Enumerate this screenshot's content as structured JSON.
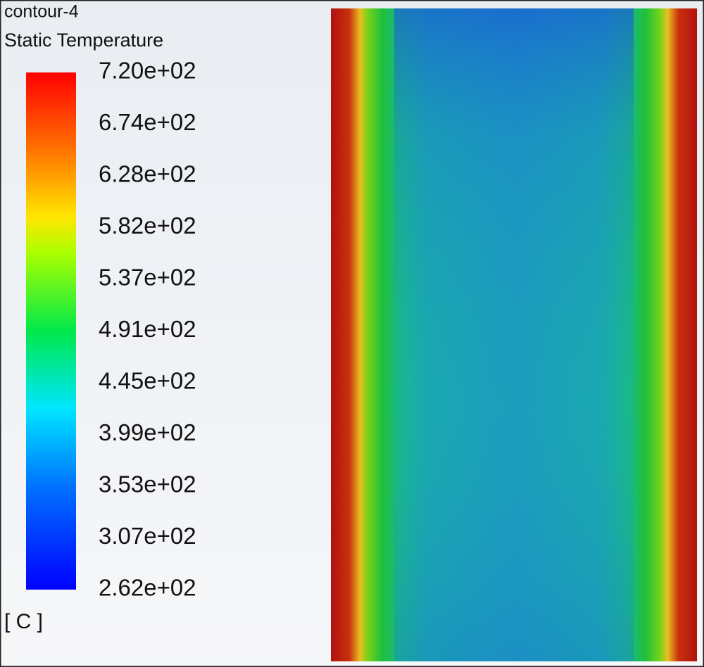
{
  "legend": {
    "title": "contour-4",
    "variable": "Static Temperature",
    "labels": [
      "7.20e+02",
      "6.74e+02",
      "6.28e+02",
      "5.82e+02",
      "5.37e+02",
      "4.91e+02",
      "4.45e+02",
      "3.99e+02",
      "3.53e+02",
      "3.07e+02",
      "2.62e+02"
    ],
    "unit": "[ C ]"
  }
}
